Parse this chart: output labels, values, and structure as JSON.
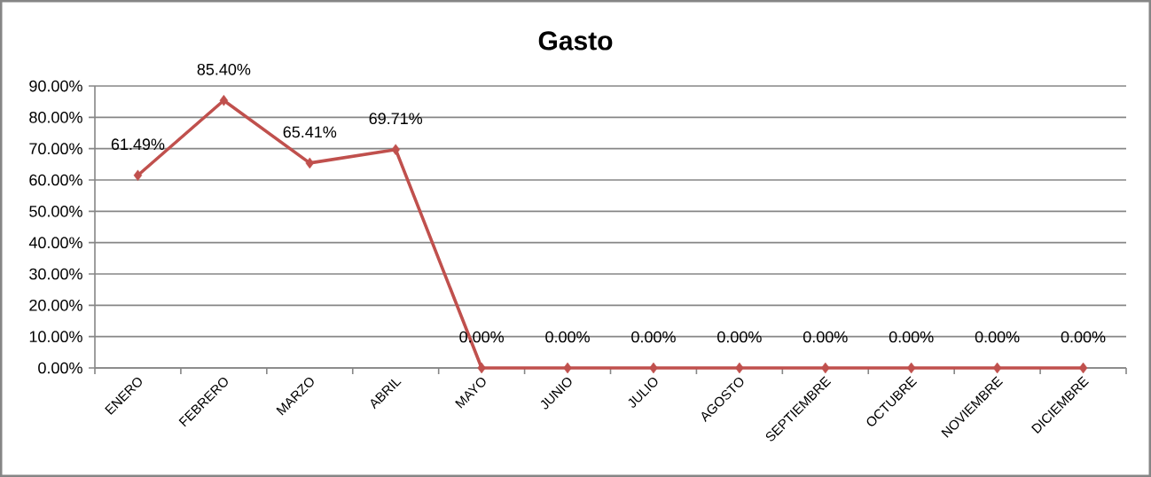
{
  "chart_data": {
    "type": "line",
    "title": "Gasto",
    "categories": [
      "ENERO",
      "FEBRERO",
      "MARZO",
      "ABRIL",
      "MAYO",
      "JUNIO",
      "JULIO",
      "AGOSTO",
      "SEPTIEMBRE",
      "OCTUBRE",
      "NOVIEMBRE",
      "DICIEMBRE"
    ],
    "values": [
      61.49,
      85.4,
      65.41,
      69.71,
      0,
      0,
      0,
      0,
      0,
      0,
      0,
      0
    ],
    "value_labels": [
      "61.49%",
      "85.40%",
      "65.41%",
      "69.71%",
      "0.00%",
      "0.00%",
      "0.00%",
      "0.00%",
      "0.00%",
      "0.00%",
      "0.00%",
      "0.00%"
    ],
    "color": "#c0504d",
    "ylim": [
      0,
      90
    ],
    "yticks": [
      {
        "value": 0,
        "label": "0.00%"
      },
      {
        "value": 10,
        "label": "10.00%"
      },
      {
        "value": 20,
        "label": "20.00%"
      },
      {
        "value": 30,
        "label": "30.00%"
      },
      {
        "value": 40,
        "label": "40.00%"
      },
      {
        "value": 50,
        "label": "50.00%"
      },
      {
        "value": 60,
        "label": "60.00%"
      },
      {
        "value": 70,
        "label": "70.00%"
      },
      {
        "value": 80,
        "label": "80.00%"
      },
      {
        "value": 90,
        "label": "90.00%"
      }
    ],
    "grid": "y",
    "marker": "diamond",
    "line_style": "solid"
  }
}
